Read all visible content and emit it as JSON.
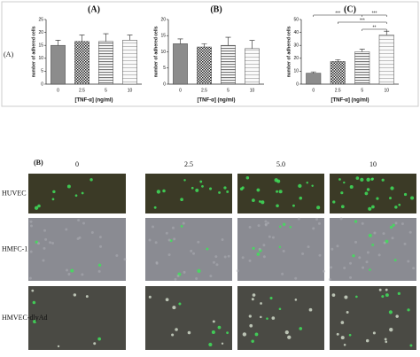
{
  "panel_a": {
    "label": "(A)"
  },
  "chart_data": [
    {
      "type": "bar",
      "title": "(A)",
      "ylabel": "number of adhered cells",
      "xlabel": "[TNF-α] (ng/ml)",
      "categories": [
        "0",
        "2.5",
        "5",
        "10"
      ],
      "values": [
        15,
        16.5,
        16.5,
        17
      ],
      "errors": [
        2,
        2.5,
        3,
        2
      ],
      "ylim": [
        0,
        25
      ],
      "yticks": [
        0,
        5,
        10,
        15,
        20,
        25
      ],
      "patterns": [
        "solid",
        "checker",
        "hstripe",
        "hline"
      ]
    },
    {
      "type": "bar",
      "title": "(B)",
      "ylabel": "number of adhered cells",
      "xlabel": "[TNF-α] (ng/ml)",
      "categories": [
        "0",
        "2.5",
        "5",
        "10"
      ],
      "values": [
        12.5,
        11.5,
        12,
        11
      ],
      "errors": [
        1.5,
        1,
        2.5,
        2.5
      ],
      "ylim": [
        0,
        20
      ],
      "yticks": [
        0,
        5,
        10,
        15,
        20
      ],
      "patterns": [
        "solid",
        "checker",
        "hstripe",
        "hline"
      ]
    },
    {
      "type": "bar",
      "title": "(C)",
      "ylabel": "number of adhered cells",
      "xlabel": "[TNF-α] (ng/ml)",
      "categories": [
        "0",
        "2.5",
        "5",
        "10"
      ],
      "values": [
        8.5,
        17.5,
        25,
        38
      ],
      "errors": [
        1,
        1.5,
        2,
        3
      ],
      "ylim": [
        0,
        50
      ],
      "yticks": [
        0,
        10,
        20,
        30,
        40,
        50
      ],
      "patterns": [
        "solid",
        "checker",
        "hstripe",
        "hline"
      ],
      "annotations": [
        {
          "label": "***",
          "between": [
            "0",
            "5"
          ]
        },
        {
          "label": "***",
          "between": [
            "5",
            "10"
          ]
        },
        {
          "label": "***",
          "between": [
            "2.5",
            "10"
          ]
        },
        {
          "label": "**",
          "between": [
            "5",
            "10"
          ]
        }
      ]
    }
  ],
  "panel_b": {
    "label": "(B)",
    "columns": [
      "0",
      "2.5",
      "5.0",
      "10"
    ],
    "rows": [
      "HUVEC",
      "HMFC-1",
      "HMVEC-dlyAd"
    ]
  }
}
